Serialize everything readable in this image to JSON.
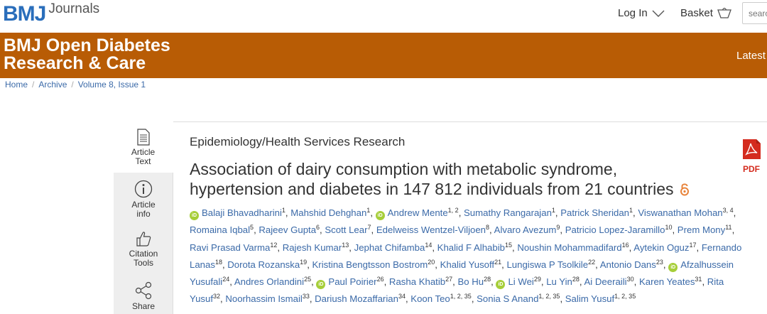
{
  "header": {
    "logo_main": "BMJ",
    "logo_sub": "Journals",
    "login_label": "Log In",
    "basket_label": "Basket",
    "search_placeholder": "search"
  },
  "band": {
    "journal_title_line1": "BMJ Open Diabetes",
    "journal_title_line2": "Research & Care",
    "latest_label": "Latest c",
    "color": "#b85c05"
  },
  "breadcrumb": [
    "Home",
    "Archive",
    "Volume 8, Issue 1"
  ],
  "sidebar": {
    "tabs": [
      {
        "line1": "Article",
        "line2": "Text",
        "icon": "document-icon"
      },
      {
        "line1": "Article",
        "line2": "info",
        "icon": "info-icon"
      },
      {
        "line1": "Citation",
        "line2": "Tools",
        "icon": "thumbs-up-icon"
      },
      {
        "line1": "Share",
        "line2": "",
        "icon": "share-icon"
      }
    ]
  },
  "article": {
    "section": "Epidemiology/Health Services Research",
    "title_line1": "Association of dairy consumption with metabolic syndrome,",
    "title_line2": "hypertension and diabetes in 147 812 individuals from 21 countries",
    "pdf_label": "PDF",
    "authors": [
      {
        "name": "Balaji Bhavadharini",
        "sup": "1",
        "orcid": true
      },
      {
        "name": "Mahshid Dehghan",
        "sup": "1",
        "orcid": false
      },
      {
        "name": "Andrew Mente",
        "sup": "1, 2",
        "orcid": true
      },
      {
        "name": "Sumathy Rangarajan",
        "sup": "1",
        "orcid": false
      },
      {
        "name": "Patrick Sheridan",
        "sup": "1",
        "orcid": false
      },
      {
        "name": "Viswanathan Mohan",
        "sup": "3, 4",
        "orcid": false
      },
      {
        "name": "Romaina Iqbal",
        "sup": "5",
        "orcid": false
      },
      {
        "name": "Rajeev Gupta",
        "sup": "6",
        "orcid": false
      },
      {
        "name": "Scott Lear",
        "sup": "7",
        "orcid": false
      },
      {
        "name": "Edelweiss Wentzel-Viljoen",
        "sup": "8",
        "orcid": false
      },
      {
        "name": "Alvaro Avezum",
        "sup": "9",
        "orcid": false
      },
      {
        "name": "Patricio Lopez-Jaramillo",
        "sup": "10",
        "orcid": false
      },
      {
        "name": "Prem Mony",
        "sup": "11",
        "orcid": false
      },
      {
        "name": "Ravi Prasad Varma",
        "sup": "12",
        "orcid": false
      },
      {
        "name": "Rajesh Kumar",
        "sup": "13",
        "orcid": false
      },
      {
        "name": "Jephat Chifamba",
        "sup": "14",
        "orcid": false
      },
      {
        "name": "Khalid F Alhabib",
        "sup": "15",
        "orcid": false
      },
      {
        "name": "Noushin Mohammadifard",
        "sup": "16",
        "orcid": false
      },
      {
        "name": "Aytekin Oguz",
        "sup": "17",
        "orcid": false
      },
      {
        "name": "Fernando Lanas",
        "sup": "18",
        "orcid": false
      },
      {
        "name": "Dorota Rozanska",
        "sup": "19",
        "orcid": false
      },
      {
        "name": "Kristina Bengtsson Bostrom",
        "sup": "20",
        "orcid": false
      },
      {
        "name": "Khalid Yusoff",
        "sup": "21",
        "orcid": false
      },
      {
        "name": "Lungiswa P Tsolkile",
        "sup": "22",
        "orcid": false
      },
      {
        "name": "Antonio Dans",
        "sup": "23",
        "orcid": false
      },
      {
        "name": "Afzalhussein Yusufali",
        "sup": "24",
        "orcid": true
      },
      {
        "name": "Andres Orlandini",
        "sup": "25",
        "orcid": false
      },
      {
        "name": "Paul Poirier",
        "sup": "26",
        "orcid": true
      },
      {
        "name": "Rasha Khatib",
        "sup": "27",
        "orcid": false
      },
      {
        "name": "Bo Hu",
        "sup": "28",
        "orcid": false
      },
      {
        "name": "Li Wei",
        "sup": "29",
        "orcid": true
      },
      {
        "name": "Lu Yin",
        "sup": "28",
        "orcid": false
      },
      {
        "name": "Ai Deeraili",
        "sup": "30",
        "orcid": false
      },
      {
        "name": "Karen Yeates",
        "sup": "31",
        "orcid": false
      },
      {
        "name": "Rita Yusuf",
        "sup": "32",
        "orcid": false
      },
      {
        "name": "Noorhassim Ismail",
        "sup": "33",
        "orcid": false
      },
      {
        "name": "Dariush Mozaffarian",
        "sup": "34",
        "orcid": false
      },
      {
        "name": "Koon Teo",
        "sup": "1, 2, 35",
        "orcid": false
      },
      {
        "name": "Sonia S Anand",
        "sup": "1, 2, 35",
        "orcid": false
      },
      {
        "name": "Salim Yusuf",
        "sup": "1, 2, 35",
        "orcid": false
      }
    ]
  },
  "colors": {
    "link": "#3b6aa8",
    "orcid": "#a6ce39",
    "pdf_red": "#d42b1e",
    "open_access": "#e8833a"
  }
}
